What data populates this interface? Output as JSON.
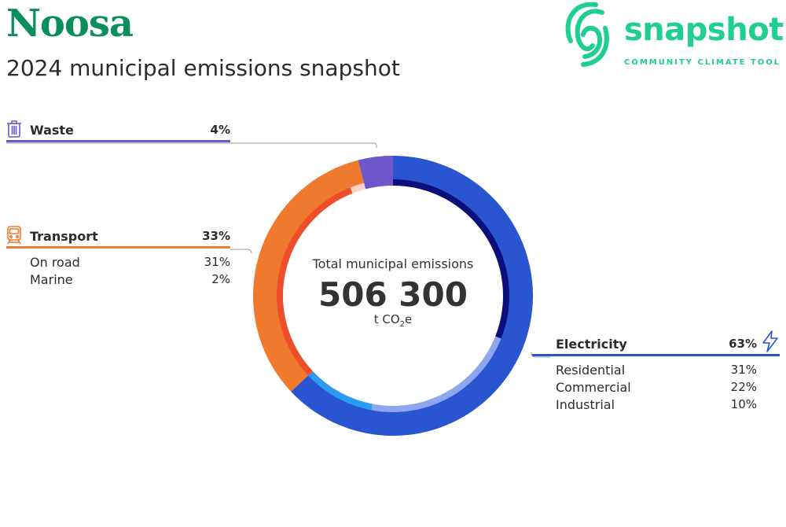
{
  "header": {
    "title": "Noosa",
    "subtitle": "2024 municipal emissions snapshot"
  },
  "logo": {
    "wordmark": "snapshot",
    "tagline": "COMMUNITY CLIMATE TOOL",
    "color": "#1fcf8f"
  },
  "colors": {
    "title": "#0a8f5a",
    "waste": "#6e58c9",
    "transport": "#ef7a2e",
    "electricity": "#2a55d0",
    "leader": "#9a9a9a"
  },
  "icons": {
    "waste": "trash-bin-icon",
    "transport": "train-icon",
    "electricity": "lightning-bolt-icon",
    "logo": "snapshot-swirl-icon"
  },
  "center": {
    "label": "Total municipal emissions",
    "value": "506 300",
    "unit_prefix": "t CO",
    "unit_sub": "2",
    "unit_suffix": "e"
  },
  "chart_data": {
    "type": "pie",
    "title": "2024 municipal emissions snapshot",
    "total": 506300,
    "unit": "t CO2e",
    "series": [
      {
        "name": "Electricity",
        "percent": 63,
        "color": "#2a55d0",
        "subcategories": [
          {
            "name": "Residential",
            "percent": 31,
            "color": "#0b0f7a"
          },
          {
            "name": "Commercial",
            "percent": 22,
            "color": "#8ca7ee"
          },
          {
            "name": "Industrial",
            "percent": 10,
            "color": "#2b9af0"
          }
        ]
      },
      {
        "name": "Transport",
        "percent": 33,
        "color": "#ef7a2e",
        "subcategories": [
          {
            "name": "On road",
            "percent": 31,
            "color": "#ee4e2c"
          },
          {
            "name": "Marine",
            "percent": 2,
            "color": "#fbd3c2"
          }
        ]
      },
      {
        "name": "Waste",
        "percent": 4,
        "color": "#6e58c9",
        "subcategories": []
      }
    ]
  },
  "sectors": {
    "waste": {
      "name": "Waste",
      "pct": "4%",
      "items": []
    },
    "transport": {
      "name": "Transport",
      "pct": "33%",
      "items": [
        {
          "name": "On road",
          "pct": "31%"
        },
        {
          "name": "Marine",
          "pct": "2%"
        }
      ]
    },
    "electricity": {
      "name": "Electricity",
      "pct": "63%",
      "items": [
        {
          "name": "Residential",
          "pct": "31%"
        },
        {
          "name": "Commercial",
          "pct": "22%"
        },
        {
          "name": "Industrial",
          "pct": "10%"
        }
      ]
    }
  }
}
